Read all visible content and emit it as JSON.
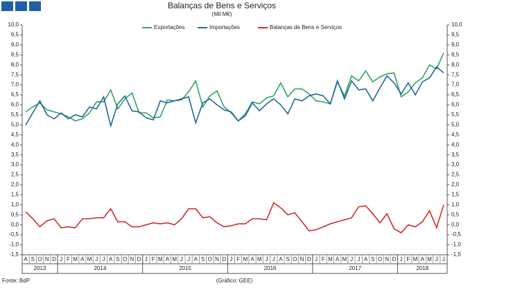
{
  "chart_data": {
    "type": "line",
    "title": "Balanças de Bens e Serviços",
    "subtitle": "(Mil M€)",
    "source": "Fonte: BdP",
    "credit": "(Gráfico: GEE)",
    "legend": "top",
    "categories": [
      "A",
      "S",
      "O",
      "N",
      "D",
      "J",
      "F",
      "M",
      "A",
      "M",
      "J",
      "J",
      "A",
      "S",
      "O",
      "N",
      "D",
      "J",
      "F",
      "M",
      "A",
      "M",
      "J",
      "J",
      "A",
      "S",
      "O",
      "N",
      "D",
      "J",
      "F",
      "M",
      "A",
      "M",
      "J",
      "J",
      "A",
      "S",
      "O",
      "N",
      "D",
      "J",
      "F",
      "M",
      "A",
      "M",
      "J",
      "J",
      "A",
      "S",
      "O",
      "N",
      "D",
      "J",
      "F",
      "M",
      "A",
      "M",
      "J",
      "J"
    ],
    "category_years": [
      "2013",
      "2013",
      "2013",
      "2013",
      "2013",
      "2014",
      "2014",
      "2014",
      "2014",
      "2014",
      "2014",
      "2014",
      "2014",
      "2014",
      "2014",
      "2014",
      "2014",
      "2015",
      "2015",
      "2015",
      "2015",
      "2015",
      "2015",
      "2015",
      "2015",
      "2015",
      "2015",
      "2015",
      "2015",
      "2016",
      "2016",
      "2016",
      "2016",
      "2016",
      "2016",
      "2016",
      "2016",
      "2016",
      "2016",
      "2016",
      "2016",
      "2017",
      "2017",
      "2017",
      "2017",
      "2017",
      "2017",
      "2017",
      "2017",
      "2017",
      "2017",
      "2017",
      "2017",
      "2018",
      "2018",
      "2018",
      "2018",
      "2018",
      "2018",
      "2018"
    ],
    "series": [
      {
        "name": "Exportações",
        "color": "#2ea55a",
        "values": [
          5.65,
          5.9,
          6.1,
          5.75,
          5.65,
          5.55,
          5.4,
          5.2,
          5.3,
          5.6,
          6.15,
          6.15,
          6.75,
          5.8,
          6.3,
          6.6,
          5.6,
          5.6,
          5.35,
          5.4,
          6.25,
          6.2,
          6.25,
          6.65,
          7.2,
          5.9,
          6.45,
          6.7,
          5.9,
          5.6,
          5.2,
          5.55,
          6.15,
          6.05,
          6.35,
          6.45,
          7.1,
          6.4,
          6.8,
          6.8,
          6.55,
          6.2,
          6.15,
          6.05,
          7.15,
          6.45,
          7.45,
          7.2,
          7.7,
          7.15,
          7.4,
          7.55,
          7.6,
          6.4,
          6.65,
          7.1,
          7.35,
          8.0,
          7.8,
          8.6
        ]
      },
      {
        "name": "Importações",
        "color": "#2266a0",
        "values": [
          5.0,
          5.6,
          6.2,
          5.5,
          5.3,
          5.6,
          5.3,
          5.5,
          5.4,
          5.9,
          5.8,
          6.4,
          4.95,
          6.05,
          6.45,
          5.7,
          5.65,
          5.35,
          5.25,
          6.2,
          6.1,
          6.2,
          6.3,
          6.4,
          5.1,
          6.1,
          6.3,
          6.0,
          5.75,
          5.65,
          5.2,
          5.45,
          6.1,
          5.7,
          6.05,
          6.3,
          6.0,
          5.55,
          6.3,
          6.2,
          6.45,
          6.55,
          6.45,
          6.05,
          7.2,
          6.3,
          7.2,
          6.75,
          6.8,
          6.2,
          6.85,
          7.45,
          7.1,
          6.55,
          7.1,
          6.5,
          7.15,
          7.35,
          7.9,
          7.6
        ]
      },
      {
        "name": "Balanças de Bens e Serviços",
        "color": "#d42a2a",
        "values": [
          0.65,
          0.3,
          -0.1,
          0.2,
          0.3,
          -0.15,
          -0.1,
          -0.15,
          0.3,
          0.3,
          0.35,
          0.35,
          0.8,
          0.15,
          0.15,
          -0.1,
          -0.1,
          0.0,
          0.1,
          0.05,
          0.1,
          0.0,
          0.3,
          0.8,
          0.8,
          0.35,
          0.4,
          0.1,
          -0.1,
          -0.05,
          0.05,
          0.05,
          0.3,
          0.3,
          0.25,
          1.1,
          0.85,
          0.5,
          0.6,
          0.15,
          -0.3,
          -0.25,
          -0.1,
          0.05,
          0.15,
          0.25,
          0.35,
          0.9,
          0.95,
          0.55,
          0.1,
          0.55,
          -0.2,
          -0.4,
          0.0,
          -0.1,
          0.15,
          0.7,
          -0.15,
          1.0
        ]
      }
    ],
    "ylim": [
      -1.5,
      10
    ],
    "yticks": [
      {
        "value": -1.5,
        "label": "-1,5"
      },
      {
        "value": -1,
        "label": "-1,0"
      },
      {
        "value": -0.5,
        "label": "-0,5"
      },
      {
        "value": 0,
        "label": "0,0"
      },
      {
        "value": 0.5,
        "label": "0,5"
      },
      {
        "value": 1,
        "label": "1,0"
      },
      {
        "value": 1.5,
        "label": "1,5"
      },
      {
        "value": 2,
        "label": "2,0"
      },
      {
        "value": 2.5,
        "label": "2,5"
      },
      {
        "value": 3,
        "label": "3,0"
      },
      {
        "value": 3.5,
        "label": "3,5"
      },
      {
        "value": 4,
        "label": "4,0"
      },
      {
        "value": 4.5,
        "label": "4,5"
      },
      {
        "value": 5,
        "label": "5,0"
      },
      {
        "value": 5.5,
        "label": "5,5"
      },
      {
        "value": 6,
        "label": "6,0"
      },
      {
        "value": 6.5,
        "label": "6,5"
      },
      {
        "value": 7,
        "label": "7,0"
      },
      {
        "value": 7.5,
        "label": "7,5"
      },
      {
        "value": 8,
        "label": "8,0"
      },
      {
        "value": 8.5,
        "label": "8,5"
      },
      {
        "value": 9,
        "label": "9,0"
      },
      {
        "value": 9.5,
        "label": "9,5"
      },
      {
        "value": 10,
        "label": "10,0"
      }
    ],
    "grid": false
  }
}
